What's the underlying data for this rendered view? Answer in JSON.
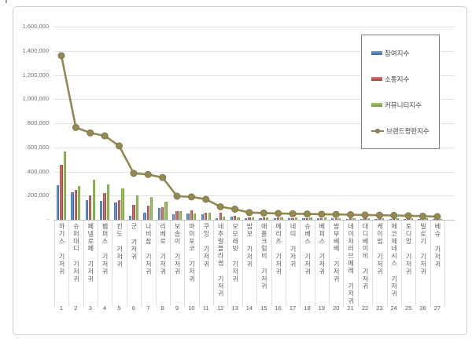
{
  "chart_data": {
    "type": "bar",
    "subtype": "grouped-bars-with-line-overlay",
    "title": "",
    "categories": [
      "하기스 기저귀",
      "슈퍼대디 기저귀",
      "페넬로페 기저귀",
      "팸퍼스 기저귀",
      "킨도 기저귀",
      "군 기저귀",
      "나비잠 기저귀",
      "리베로 기저귀",
      "보솜이 기저귀",
      "마미포코 기저귀",
      "쿠잉 기저귀",
      "네추럴블라썸 기저귀",
      "모모래빗 기저귀",
      "밤보 기저귀",
      "애플크럼비 기저귀",
      "메리즈 기저귀",
      "네띠 기저귀",
      "슈베스 기저귀",
      "베피스 기저귀",
      "밤부베베 기저귀",
      "네이처러브메레 기저귀",
      "대디베이비 기저귀",
      "케이맘 기저귀",
      "에코제네시스 기저귀",
      "토디앙 기저귀",
      "빌로기 기저귀",
      "베슈 기저귀"
    ],
    "ranks": [
      1,
      2,
      3,
      4,
      5,
      6,
      7,
      8,
      9,
      10,
      11,
      12,
      13,
      14,
      15,
      16,
      17,
      18,
      19,
      20,
      21,
      22,
      23,
      24,
      25,
      26,
      27
    ],
    "series": [
      {
        "name": "참여지수",
        "type": "bar",
        "color": "#4f81bd",
        "values": [
          285000,
          225000,
          165000,
          158000,
          142000,
          35000,
          60000,
          98000,
          45000,
          50000,
          45000,
          15000,
          25000,
          14000,
          13000,
          13000,
          12000,
          12000,
          11000,
          11000,
          10000,
          10000,
          9000,
          9000,
          9000,
          8000,
          7000
        ]
      },
      {
        "name": "소통지수",
        "type": "bar",
        "color": "#c0504d",
        "values": [
          455000,
          245000,
          200000,
          222000,
          165000,
          125000,
          115000,
          105000,
          75000,
          80000,
          60000,
          60000,
          35000,
          19000,
          18000,
          17000,
          16000,
          16000,
          15000,
          15000,
          14000,
          13000,
          13000,
          12000,
          11000,
          10000,
          9000
        ]
      },
      {
        "name": "커뮤니티지수",
        "type": "bar",
        "color": "#8abb4a",
        "values": [
          565000,
          278000,
          330000,
          295000,
          262000,
          205000,
          190000,
          150000,
          70000,
          55000,
          60000,
          28000,
          22000,
          21000,
          20000,
          19000,
          18000,
          17000,
          17000,
          16000,
          15000,
          15000,
          14000,
          13000,
          12000,
          11000,
          10000
        ]
      },
      {
        "name": "브랜드평판지수",
        "type": "line",
        "color": "#938953",
        "values": [
          1360000,
          765000,
          720000,
          695000,
          612000,
          385000,
          375000,
          350000,
          195000,
          190000,
          170000,
          108000,
          88000,
          60000,
          56000,
          53000,
          50000,
          48000,
          46000,
          44000,
          42000,
          40000,
          38000,
          36000,
          34000,
          30000,
          26000
        ]
      }
    ],
    "y_axis": {
      "min": 0,
      "max": 1600000,
      "step": 200000,
      "tick_labels": [
        "-",
        "200,000",
        "400,000",
        "600,000",
        "800,000",
        "1,000,000",
        "1,200,000",
        "1,400,000",
        "1,600,000"
      ]
    },
    "legend_position": "right-top-overlay",
    "grid": true
  }
}
